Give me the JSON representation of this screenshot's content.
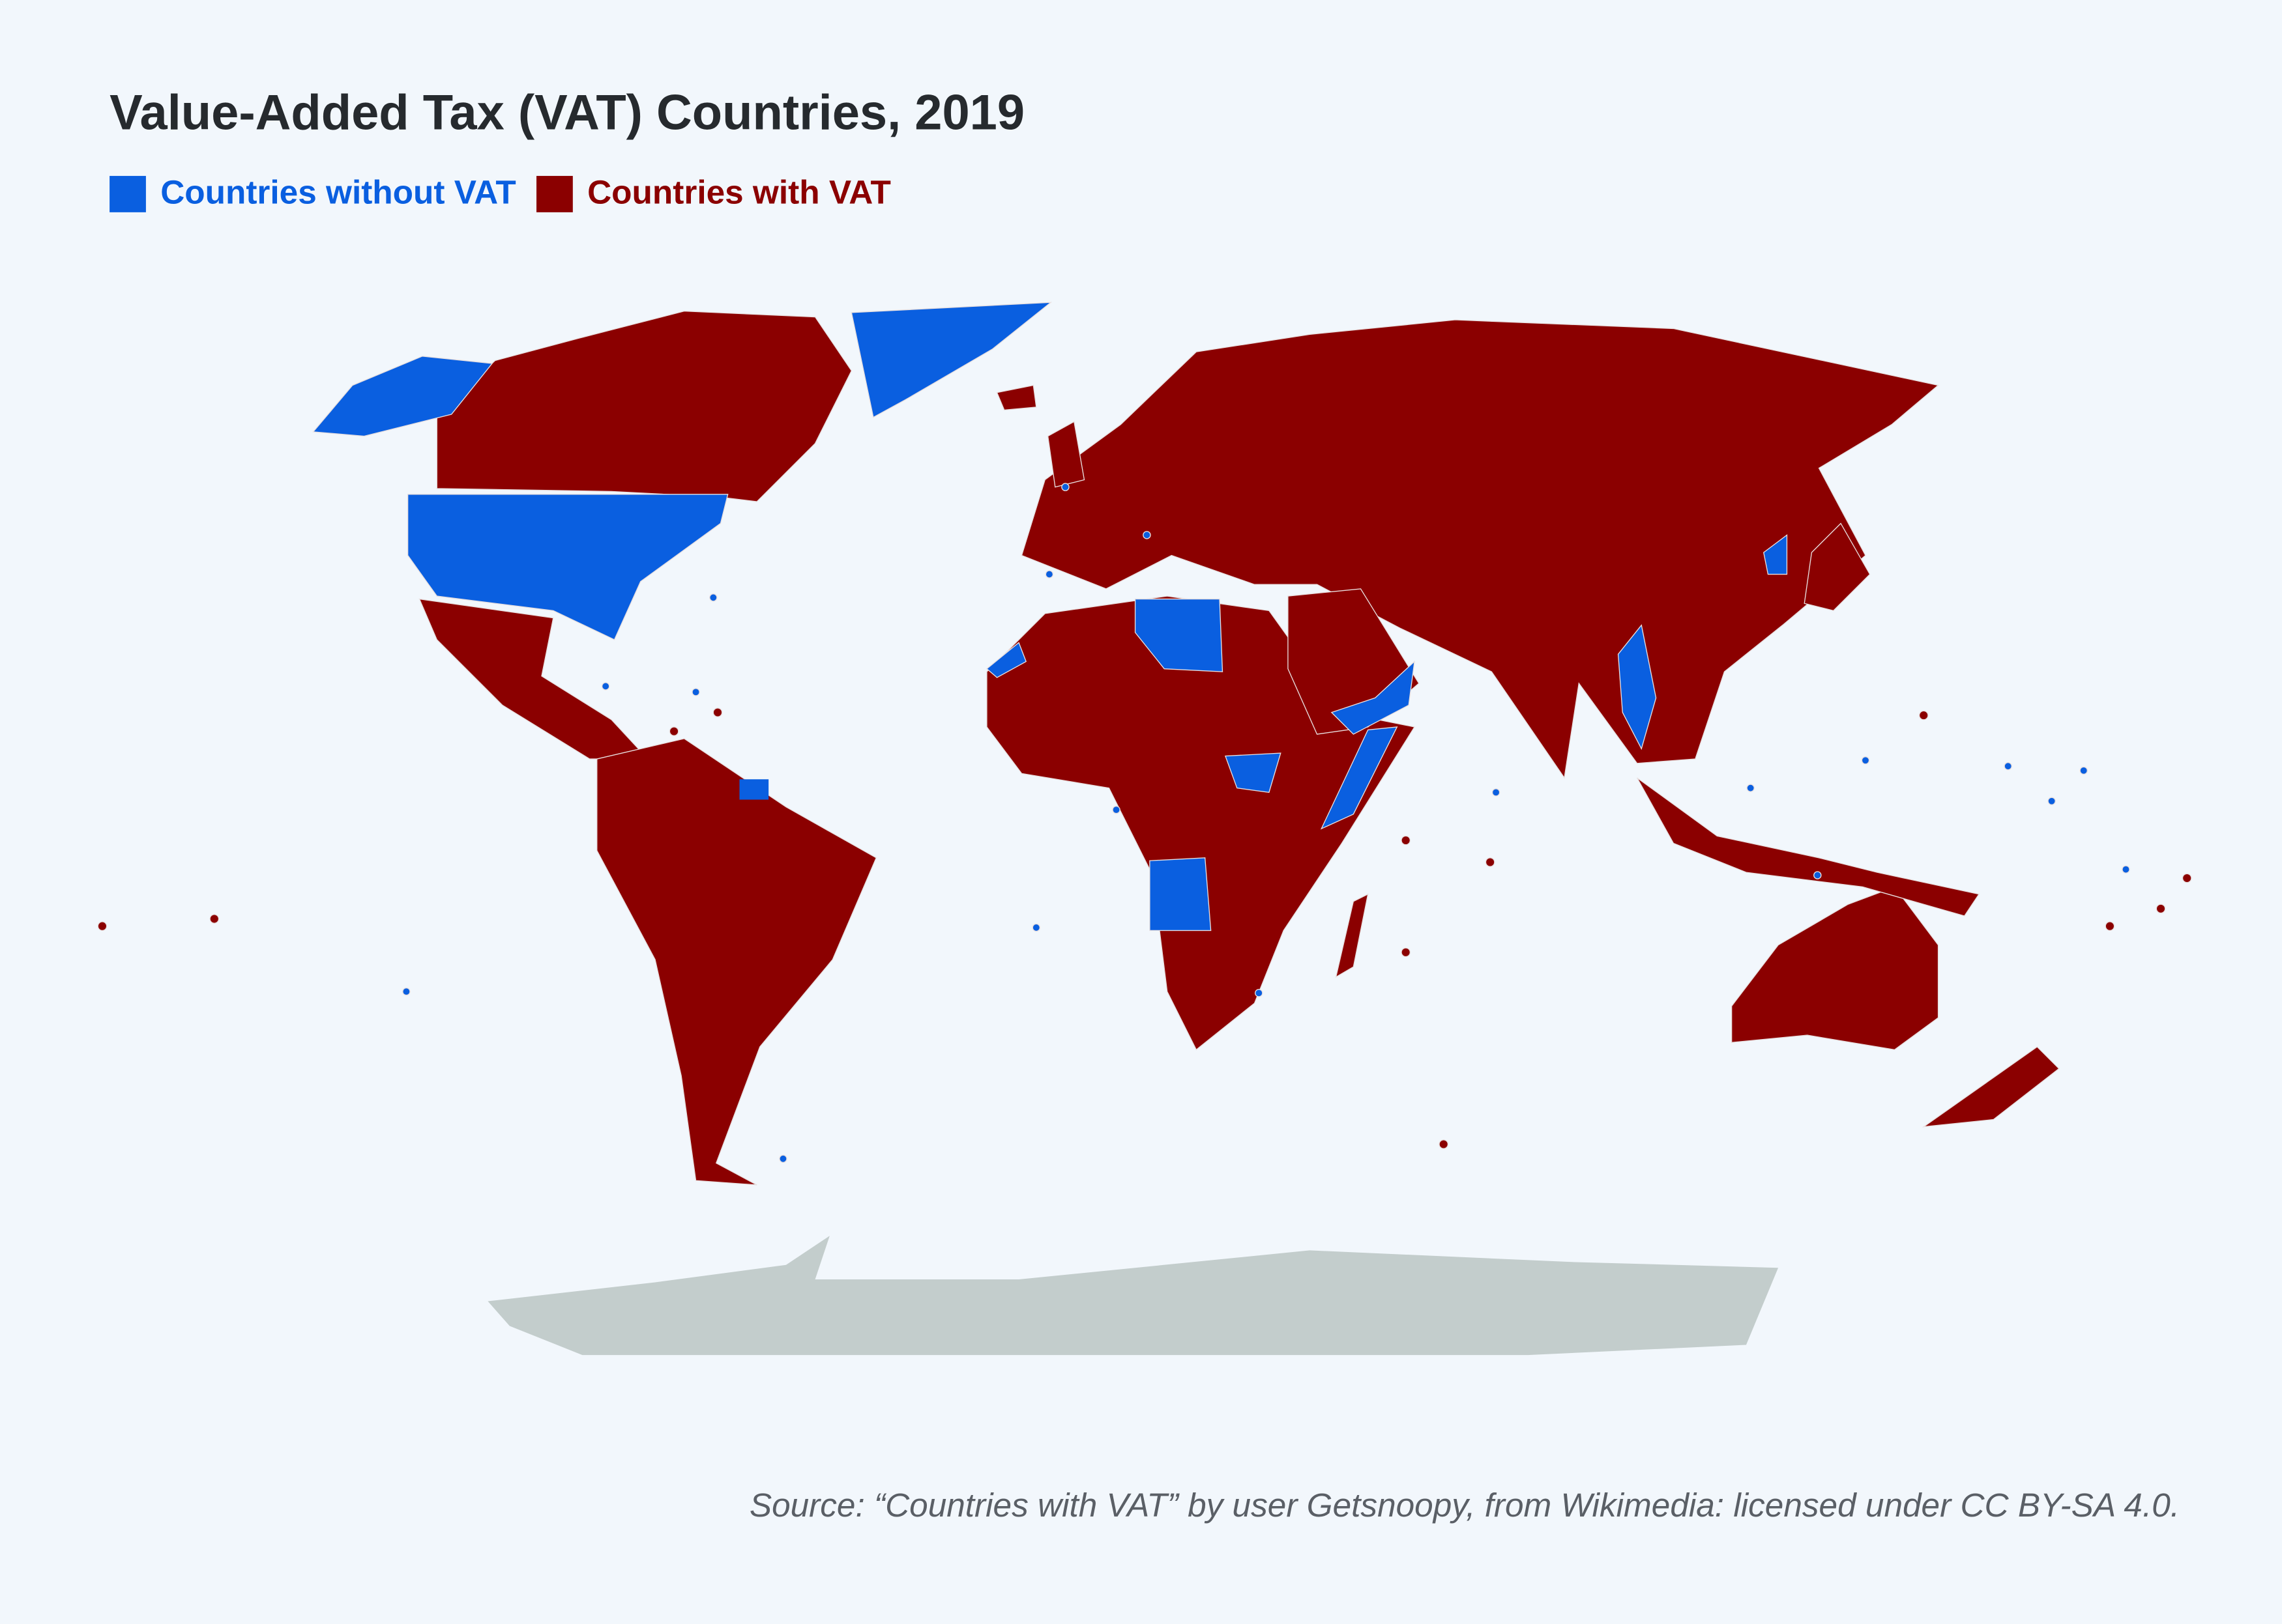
{
  "title": "Value-Added Tax (VAT) Countries, 2019",
  "legend": [
    {
      "label": "Countries without VAT",
      "color": "#0a5fe0"
    },
    {
      "label": "Countries with VAT",
      "color": "#8b0000"
    }
  ],
  "source": "Source: “Countries with VAT” by user Getsnoopy, from Wikimedia: licensed under CC BY-SA 4.0."
}
